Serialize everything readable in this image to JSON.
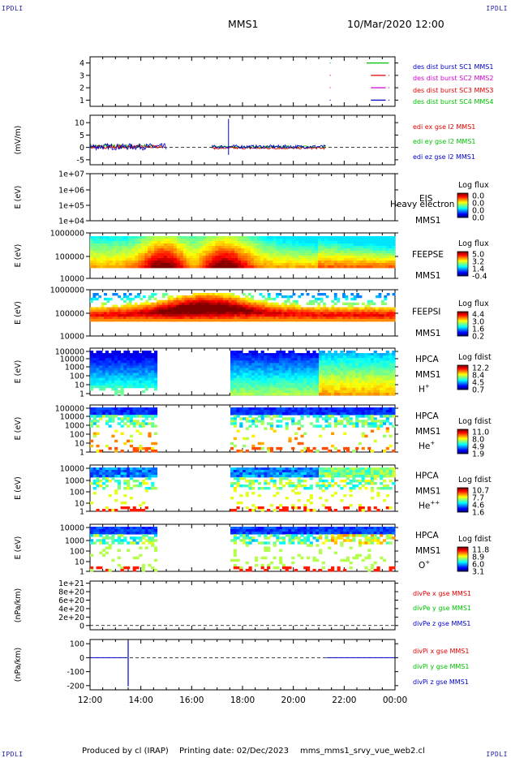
{
  "header": {
    "corner_label": "IPDLI",
    "spacecraft": "MMS1",
    "datetime": "10/Mar/2020 12:00"
  },
  "footer": {
    "producer": "Produced by cl (IRAP)",
    "printing_date": "Printing date: 02/Dec/2023",
    "script_name": "mms_mms1_srvy_vue_web2.cl"
  },
  "colors": {
    "mms1": "#0000c8",
    "mms2": "#d000d0",
    "mms3": "#e00000",
    "mms4": "#00c000",
    "x": "#e00000",
    "y": "#00c000",
    "z": "#0000c8"
  },
  "chart_data": [
    {
      "type": "line",
      "id": "burst",
      "x_range": [
        "12:00",
        "00:00"
      ],
      "ylim": [
        0.5,
        4.5
      ],
      "yticks": [
        "1",
        "2",
        "3",
        "4"
      ],
      "ylabel": "",
      "series": [
        {
          "name": "des dist burst SC1 MMS1",
          "color": "#0000c8",
          "level": 1,
          "segments": [
            [
              "21:26",
              "21:27"
            ],
            [
              "23:03",
              "23:38"
            ],
            [
              "23:45",
              "23:46"
            ]
          ]
        },
        {
          "name": "des dist burst SC2 MMS2",
          "color": "#d000d0",
          "level": 2,
          "segments": [
            [
              "21:26",
              "21:27"
            ],
            [
              "23:03",
              "23:38"
            ],
            [
              "23:45",
              "23:46"
            ]
          ]
        },
        {
          "name": "des dist burst SC3 MMS3",
          "color": "#e00000",
          "level": 3,
          "segments": [
            [
              "21:26",
              "21:27"
            ],
            [
              "23:03",
              "23:38"
            ],
            [
              "23:45",
              "23:46"
            ]
          ]
        },
        {
          "name": "des dist burst SC4 MMS4",
          "color": "#00c000",
          "level": 4,
          "segments": [
            [
              "21:26",
              "21:27"
            ],
            [
              "22:53",
              "23:45"
            ]
          ]
        }
      ]
    },
    {
      "type": "line",
      "id": "edi",
      "ylabel": "(mV/m)",
      "ylim": [
        -7,
        13
      ],
      "yticks": [
        "-5",
        "0",
        "5",
        "10"
      ],
      "series": [
        {
          "name": "edi ex gse l2 MMS1",
          "color": "#e00000"
        },
        {
          "name": "edi ey gse l2 MMS1",
          "color": "#00c000"
        },
        {
          "name": "edi ez gse l2 MMS1",
          "color": "#0000c8"
        }
      ]
    },
    {
      "type": "heatmap",
      "id": "eis",
      "ylabel": "E (eV)",
      "yticks": [
        "1e+07",
        "1e+06",
        "1e+05",
        "1e+04"
      ],
      "instrument": "EIS",
      "spacecraft": "MMS1",
      "overlay_text": "Heavy electron to",
      "colorbar": {
        "title": "Log flux",
        "ticks": [
          "0.0",
          "0.0",
          "0.0",
          "0.0"
        ]
      }
    },
    {
      "type": "heatmap",
      "id": "feepse",
      "ylabel": "E (eV)",
      "yticks": [
        "1000000",
        "100000",
        "10000"
      ],
      "instrument": "FEEPSE",
      "spacecraft": "MMS1",
      "colorbar": {
        "title": "Log flux",
        "ticks": [
          "5.0",
          "3.2",
          "1.4",
          "-0.4"
        ]
      }
    },
    {
      "type": "heatmap",
      "id": "feepsi",
      "ylabel": "E (eV)",
      "yticks": [
        "1000000",
        "100000",
        "10000"
      ],
      "instrument": "FEEPSI",
      "spacecraft": "MMS1",
      "colorbar": {
        "title": "Log flux",
        "ticks": [
          "4.4",
          "3.0",
          "1.6",
          "0.2"
        ]
      }
    },
    {
      "type": "heatmap",
      "id": "hpca_h",
      "ylabel": "E (eV)",
      "yticks": [
        "100000",
        "10000",
        "1000",
        "100",
        "10",
        "1"
      ],
      "instrument": "HPCA",
      "spacecraft": "MMS1",
      "species": "H",
      "charge": "+",
      "colorbar": {
        "title": "Log fdist",
        "ticks": [
          "12.2",
          "8.4",
          "4.5",
          "0.7"
        ]
      }
    },
    {
      "type": "heatmap",
      "id": "hpca_he",
      "ylabel": "E (eV)",
      "yticks": [
        "100000",
        "10000",
        "1000",
        "100",
        "10",
        "1"
      ],
      "instrument": "HPCA",
      "spacecraft": "MMS1",
      "species": "He",
      "charge": "+",
      "colorbar": {
        "title": "Log fdist",
        "ticks": [
          "11.0",
          "8.0",
          "4.9",
          "1.9"
        ]
      }
    },
    {
      "type": "heatmap",
      "id": "hpca_hepp",
      "ylabel": "E (eV)",
      "yticks": [
        "10000",
        "1000",
        "100",
        "10",
        "1"
      ],
      "instrument": "HPCA",
      "spacecraft": "MMS1",
      "species": "He",
      "charge": "++",
      "colorbar": {
        "title": "Log fdist",
        "ticks": [
          "10.7",
          "7.7",
          "4.6",
          "1.6"
        ]
      }
    },
    {
      "type": "heatmap",
      "id": "hpca_o",
      "ylabel": "E (eV)",
      "yticks": [
        "10000",
        "1000",
        "100",
        "10",
        "1"
      ],
      "instrument": "HPCA",
      "spacecraft": "MMS1",
      "species": "O",
      "charge": "+",
      "colorbar": {
        "title": "Log fdist",
        "ticks": [
          "11.8",
          "8.9",
          "6.0",
          "3.1"
        ]
      }
    },
    {
      "type": "line",
      "id": "divpe",
      "ylabel": "(nPa/km)",
      "ylim": [
        -1e+20,
        1.05e+21
      ],
      "yticks": [
        "1e+21",
        "8e+20",
        "6e+20",
        "4e+20",
        "2e+20",
        "0"
      ],
      "series": [
        {
          "name": "divPe x gse MMS1",
          "color": "#e00000"
        },
        {
          "name": "divPe y gse MMS1",
          "color": "#00c000"
        },
        {
          "name": "divPe z gse MMS1",
          "color": "#0000c8"
        }
      ]
    },
    {
      "type": "line",
      "id": "divpi",
      "ylabel": "(nPa/km)",
      "ylim": [
        -230,
        130
      ],
      "yticks": [
        "100",
        "0",
        "-100",
        "-200"
      ],
      "series": [
        {
          "name": "divPi x gse MMS1",
          "color": "#e00000"
        },
        {
          "name": "divPi y gse MMS1",
          "color": "#00c000"
        },
        {
          "name": "divPi z gse MMS1",
          "color": "#0000c8"
        }
      ]
    }
  ],
  "time_axis": {
    "labels": [
      "12:00",
      "14:00",
      "16:00",
      "18:00",
      "20:00",
      "22:00",
      "00:00"
    ]
  }
}
